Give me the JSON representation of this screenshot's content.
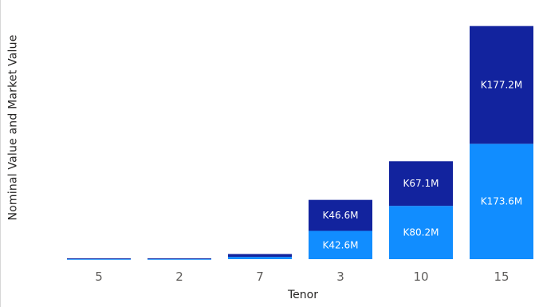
{
  "chart_data": {
    "type": "bar",
    "stacked": true,
    "title": "",
    "xlabel": "Tenor",
    "ylabel": "Nominal Value and Market Value",
    "categories": [
      "5",
      "2",
      "7",
      "3",
      "10",
      "15"
    ],
    "series": [
      {
        "color": "#118dff",
        "values": [
          0.3,
          0.3,
          3.5,
          42.6,
          80.2,
          173.6
        ],
        "labels": [
          "",
          "",
          "",
          "K42.6M",
          "K80.2M",
          "K173.6M"
        ]
      },
      {
        "color": "#12239e",
        "values": [
          1.0,
          1.0,
          4.2,
          46.6,
          67.1,
          177.2
        ],
        "labels": [
          "",
          "",
          "",
          "K46.6M",
          "K67.1M",
          "K177.2M"
        ]
      }
    ],
    "ylim": [
      0,
      360
    ],
    "grid": false,
    "legend": "none"
  }
}
